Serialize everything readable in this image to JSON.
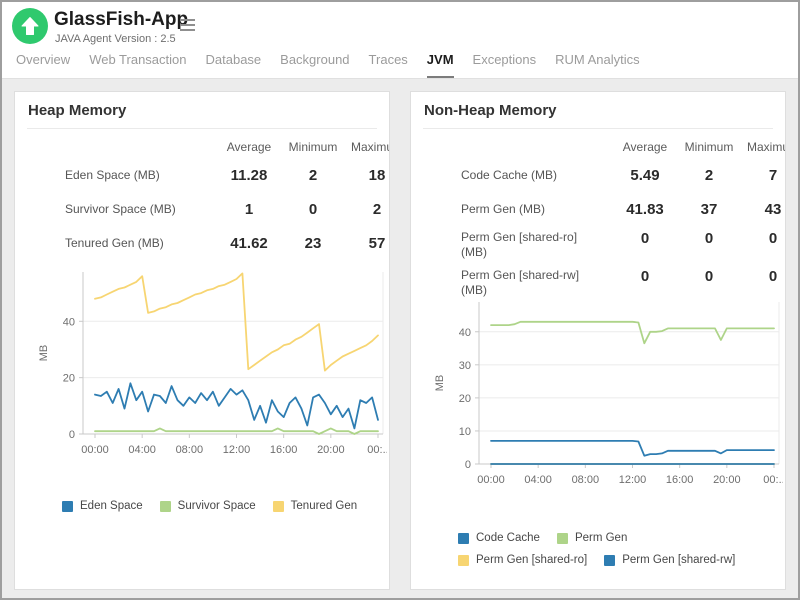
{
  "header": {
    "app_name": "GlassFish-App",
    "agent_version": "JAVA Agent Version : 2.5",
    "status_icon": "upload-arrow-circle-icon",
    "status_color": "#2fc96e",
    "menu_icon": "hamburger-icon"
  },
  "tabs": [
    {
      "label": "Overview",
      "active": false
    },
    {
      "label": "Web Transaction",
      "active": false
    },
    {
      "label": "Database",
      "active": false
    },
    {
      "label": "Background",
      "active": false
    },
    {
      "label": "Traces",
      "active": false
    },
    {
      "label": "JVM",
      "active": true
    },
    {
      "label": "Exceptions",
      "active": false
    },
    {
      "label": "RUM Analytics",
      "active": false
    }
  ],
  "panels": [
    {
      "title": "Heap Memory",
      "table": {
        "columns": [
          "Average",
          "Minimum",
          "Maximum"
        ],
        "rows": [
          {
            "label": "Eden Space (MB)",
            "average": "11.28",
            "minimum": "2",
            "maximum": "18"
          },
          {
            "label": "Survivor Space (MB)",
            "average": "1",
            "minimum": "0",
            "maximum": "2"
          },
          {
            "label": "Tenured Gen (MB)",
            "average": "41.62",
            "minimum": "23",
            "maximum": "57"
          }
        ]
      }
    },
    {
      "title": "Non-Heap Memory",
      "table": {
        "columns": [
          "Average",
          "Minimum",
          "Maximum"
        ],
        "rows": [
          {
            "label": "Code Cache (MB)",
            "average": "5.49",
            "minimum": "2",
            "maximum": "7"
          },
          {
            "label": "Perm Gen (MB)",
            "average": "41.83",
            "minimum": "37",
            "maximum": "43"
          },
          {
            "label": "Perm Gen [shared-ro]",
            "label2": "(MB)",
            "average": "0",
            "minimum": "0",
            "maximum": "0"
          },
          {
            "label": "Perm Gen [shared-rw]",
            "label2": "(MB)",
            "average": "0",
            "minimum": "0",
            "maximum": "0"
          }
        ]
      }
    }
  ],
  "chart_data": [
    {
      "type": "line",
      "title": "Heap Memory",
      "ylabel": "MB",
      "ylim": [
        0,
        57.5
      ],
      "yticks": [
        0,
        20,
        40
      ],
      "xticks": [
        "00:00",
        "04:00",
        "08:00",
        "12:00",
        "16:00",
        "20:00",
        "00:.."
      ],
      "x_range_hours": [
        0,
        24
      ],
      "x_step_hours": 0.5,
      "grid": true,
      "legend_position": "bottom",
      "series": [
        {
          "name": "Eden Space",
          "color": "#2e7db2",
          "values": [
            14,
            13.5,
            15,
            11,
            16,
            9,
            18,
            12,
            15,
            8,
            14,
            13.5,
            11,
            17,
            12,
            10,
            13,
            11,
            14.5,
            12,
            15,
            10,
            13,
            16,
            14,
            15.5,
            12,
            5,
            10,
            4,
            12,
            8,
            6,
            11,
            13,
            9,
            3,
            13,
            14,
            11,
            7,
            10,
            6,
            9,
            2,
            12,
            11,
            13,
            5
          ]
        },
        {
          "name": "Survivor Space",
          "color": "#aed489",
          "values": [
            1,
            1,
            1,
            1,
            1,
            1,
            1,
            1,
            1,
            1,
            1,
            2,
            1,
            1,
            1,
            1,
            1,
            1,
            1,
            1,
            1,
            1,
            1,
            1,
            1,
            1,
            1,
            1,
            1,
            1,
            1,
            2,
            1,
            1,
            1,
            1,
            1,
            1,
            0,
            1,
            2,
            1,
            1,
            1,
            0,
            1,
            1,
            1,
            1
          ]
        },
        {
          "name": "Tenured Gen",
          "color": "#f7d572",
          "values": [
            48,
            48.5,
            49.5,
            50.5,
            51.5,
            52,
            53,
            54,
            56,
            43,
            43.5,
            44.5,
            45,
            46,
            46.5,
            47.5,
            48.5,
            49.5,
            50,
            51,
            51.5,
            52.5,
            53,
            54,
            55,
            57,
            23,
            24.5,
            26,
            27.5,
            29,
            30,
            31.5,
            32,
            33.5,
            34.5,
            36,
            37.5,
            39,
            22.5,
            24.5,
            26,
            27.5,
            28.5,
            29.5,
            30.5,
            31.5,
            33,
            35
          ]
        }
      ]
    },
    {
      "type": "line",
      "title": "Non-Heap Memory",
      "ylabel": "MB",
      "ylim": [
        0,
        49
      ],
      "yticks": [
        0,
        10,
        20,
        30,
        40
      ],
      "xticks": [
        "00:00",
        "04:00",
        "08:00",
        "12:00",
        "16:00",
        "20:00",
        "00:.."
      ],
      "x_range_hours": [
        0,
        24
      ],
      "x_step_hours": 0.5,
      "grid": true,
      "legend_position": "bottom",
      "series": [
        {
          "name": "Code Cache",
          "color": "#2e7db2",
          "values": [
            7,
            7,
            7,
            7,
            7,
            7,
            7,
            7,
            7,
            7,
            7,
            7,
            7,
            7,
            7,
            7,
            7,
            7,
            7,
            7,
            7,
            7,
            7,
            7,
            7,
            6.8,
            2.5,
            3,
            3,
            3.2,
            4,
            4,
            4,
            4,
            4,
            4,
            4,
            4,
            4,
            3.2,
            4.2,
            4.2,
            4.2,
            4.2,
            4.2,
            4.2,
            4.2,
            4.2,
            4.2
          ]
        },
        {
          "name": "Perm Gen",
          "color": "#aed489",
          "values": [
            42,
            42,
            42,
            42,
            42.3,
            43,
            43,
            43,
            43,
            43,
            43,
            43,
            43,
            43,
            43,
            43,
            43,
            43,
            43,
            43,
            43,
            43,
            43,
            43,
            43,
            42.8,
            36.5,
            40,
            40,
            40.2,
            41,
            41,
            41,
            41,
            41,
            41,
            41,
            41,
            41,
            37.5,
            41,
            41,
            41,
            41,
            41,
            41,
            41,
            41,
            41
          ]
        },
        {
          "name": "Perm Gen [shared-ro]",
          "color": "#f7d572",
          "values": [
            0,
            0,
            0,
            0,
            0,
            0,
            0,
            0,
            0,
            0,
            0,
            0,
            0,
            0,
            0,
            0,
            0,
            0,
            0,
            0,
            0,
            0,
            0,
            0,
            0,
            0,
            0,
            0,
            0,
            0,
            0,
            0,
            0,
            0,
            0,
            0,
            0,
            0,
            0,
            0,
            0,
            0,
            0,
            0,
            0,
            0,
            0,
            0,
            0
          ]
        },
        {
          "name": "Perm Gen [shared-rw]",
          "color": "#2e7db2",
          "values": [
            0,
            0,
            0,
            0,
            0,
            0,
            0,
            0,
            0,
            0,
            0,
            0,
            0,
            0,
            0,
            0,
            0,
            0,
            0,
            0,
            0,
            0,
            0,
            0,
            0,
            0,
            0,
            0,
            0,
            0,
            0,
            0,
            0,
            0,
            0,
            0,
            0,
            0,
            0,
            0,
            0,
            0,
            0,
            0,
            0,
            0,
            0,
            0,
            0
          ]
        }
      ]
    }
  ]
}
